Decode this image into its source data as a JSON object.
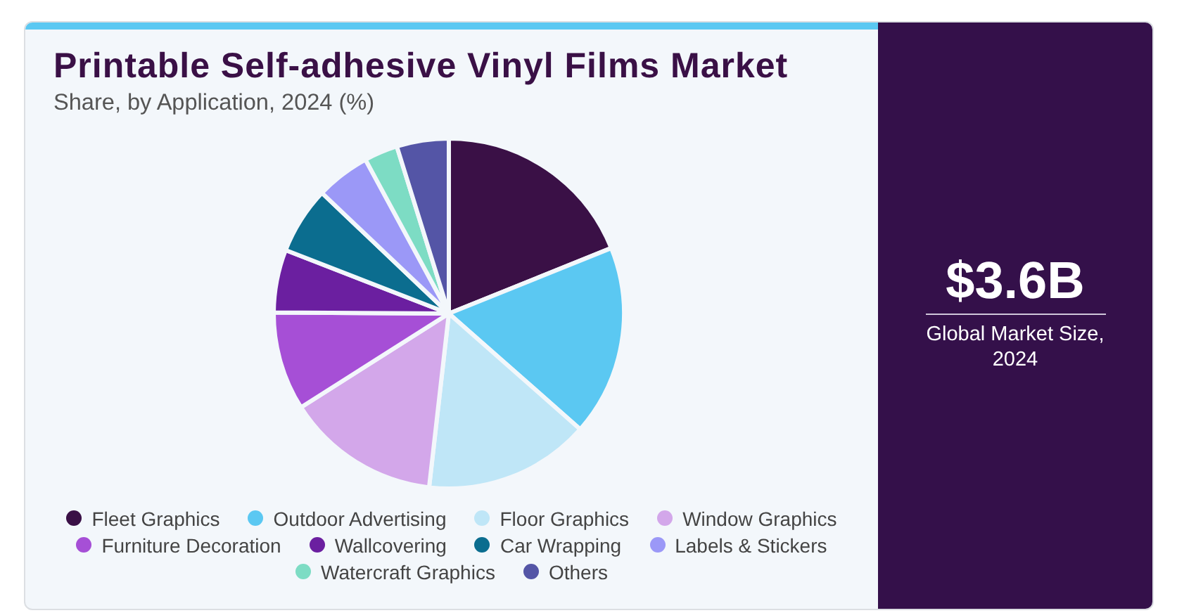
{
  "chart_data": {
    "type": "pie",
    "title": "Printable Self-adhesive Vinyl Films Market",
    "subtitle": "Share, by Application, 2024 (%)",
    "categories": [
      "Fleet Graphics",
      "Outdoor Advertising",
      "Floor Graphics",
      "Window Graphics",
      "Furniture Decoration",
      "Wallcovering",
      "Car Wrapping",
      "Labels & Stickers",
      "Watercraft Graphics",
      "Others"
    ],
    "values": [
      18.9,
      17.6,
      15.3,
      14.2,
      9.1,
      5.8,
      6.2,
      5.0,
      3.1,
      4.8
    ],
    "colors": [
      "#3a1046",
      "#5bc8f2",
      "#bfe6f7",
      "#d3a7ea",
      "#a64fd6",
      "#6b1fa0",
      "#0b6d8f",
      "#9b98f7",
      "#7ddcc4",
      "#5455a6"
    ],
    "legend": "bottom",
    "annotations": [
      "$3.6B",
      "Global Market Size, 2024"
    ]
  }
}
